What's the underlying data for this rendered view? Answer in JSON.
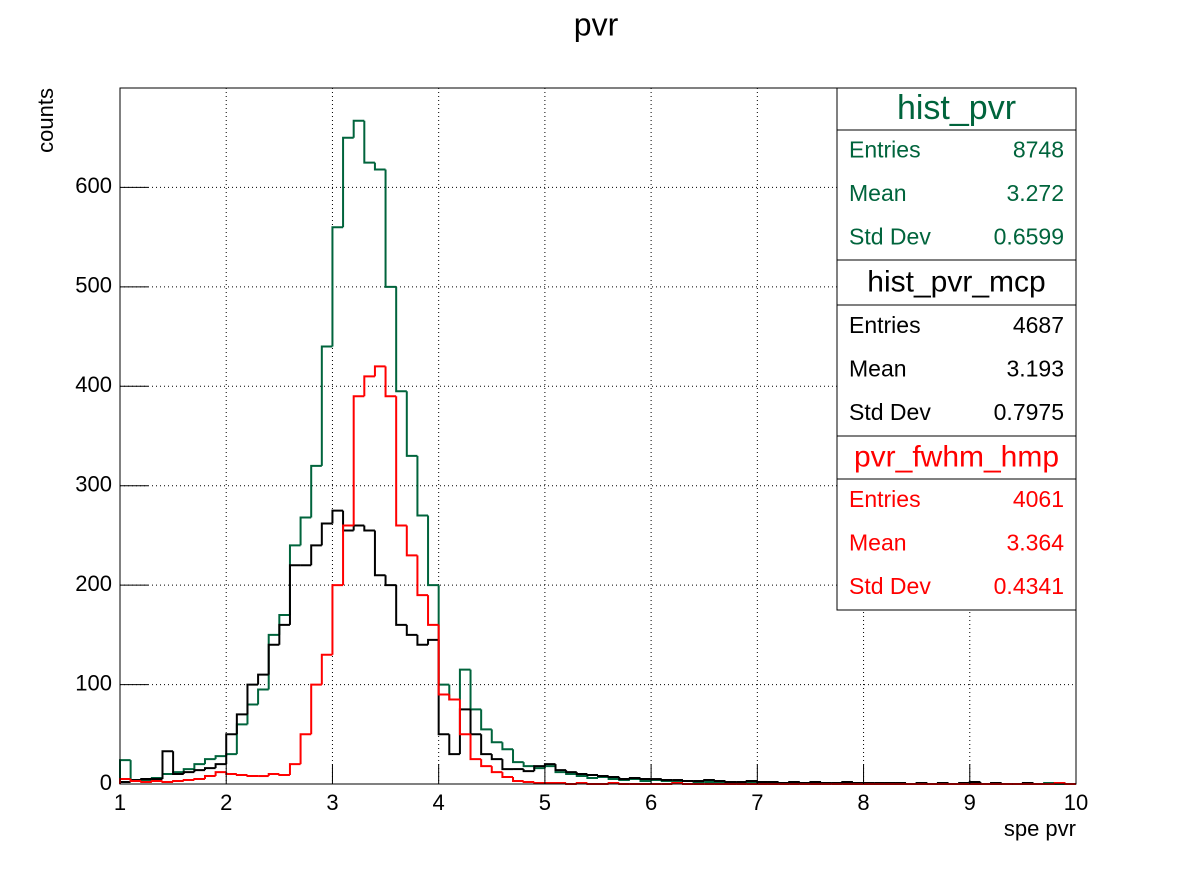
{
  "chart_data": {
    "type": "histogram",
    "title": "pvr",
    "x_label": "spe pvr",
    "y_label": "counts",
    "bins": [
      1,
      1.1,
      1.2,
      1.3,
      1.4,
      1.5,
      1.6,
      1.7,
      1.8,
      1.9,
      2,
      2.1,
      2.2,
      2.3,
      2.4,
      2.5,
      2.6,
      2.7,
      2.8,
      2.9,
      3,
      3.1,
      3.2,
      3.3,
      3.4,
      3.5,
      3.6,
      3.7,
      3.8,
      3.9,
      4,
      4.1,
      4.2,
      4.3,
      4.4,
      4.5,
      4.6,
      4.7,
      4.8,
      4.9,
      5,
      5.1,
      5.2,
      5.3,
      5.4,
      5.5,
      5.6,
      5.7,
      5.8,
      5.9,
      6,
      6.1,
      6.2,
      6.3,
      6.4,
      6.5,
      6.6,
      6.7,
      6.8,
      6.9,
      7,
      7.1,
      7.2,
      7.3,
      7.4,
      7.5,
      7.6,
      7.7,
      7.8,
      7.9,
      8,
      8.1,
      8.2,
      8.3,
      8.4,
      8.5,
      8.6,
      8.7,
      8.8,
      8.9,
      9,
      9.1,
      9.2,
      9.3,
      9.4,
      9.5,
      9.6,
      9.7,
      9.8,
      9.9,
      10
    ],
    "xlim": [
      1,
      10
    ],
    "ylim": [
      0,
      700
    ],
    "xticks": [
      1,
      2,
      3,
      4,
      5,
      6,
      7,
      8,
      9,
      10
    ],
    "yticks": [
      0,
      100,
      200,
      300,
      400,
      500,
      600
    ],
    "grid": true,
    "stats_labels": [
      "Entries",
      "Mean",
      "Std Dev"
    ],
    "series": [
      {
        "name": "hist_pvr",
        "color": "#00643c",
        "entries": 8748,
        "mean": 3.272,
        "std_dev": 0.6599,
        "values": [
          24,
          3,
          4,
          6,
          10,
          12,
          15,
          20,
          25,
          28,
          30,
          60,
          80,
          95,
          150,
          170,
          240,
          268,
          320,
          440,
          560,
          650,
          667,
          625,
          618,
          500,
          395,
          330,
          270,
          200,
          100,
          85,
          115,
          75,
          55,
          42,
          35,
          22,
          18,
          16,
          18,
          12,
          10,
          8,
          6,
          7,
          5,
          4,
          5,
          3,
          4,
          3,
          2,
          3,
          2,
          2,
          1,
          2,
          1,
          1,
          2,
          1,
          1,
          1,
          1,
          1,
          1,
          1,
          1,
          0,
          1,
          0,
          1,
          0,
          0,
          1,
          0,
          0,
          0,
          0,
          1,
          0,
          0,
          0,
          0,
          0,
          0,
          1,
          0,
          0
        ]
      },
      {
        "name": "hist_pvr_mcp",
        "color": "#000000",
        "entries": 4687,
        "mean": 3.193,
        "std_dev": 0.7975,
        "values": [
          2,
          4,
          5,
          5,
          33,
          10,
          12,
          14,
          16,
          20,
          50,
          70,
          100,
          110,
          140,
          160,
          220,
          220,
          240,
          262,
          275,
          255,
          260,
          255,
          210,
          200,
          160,
          150,
          140,
          145,
          50,
          30,
          75,
          50,
          30,
          25,
          15,
          15,
          13,
          18,
          20,
          14,
          12,
          10,
          9,
          8,
          7,
          5,
          6,
          5,
          5,
          4,
          4,
          3,
          3,
          4,
          3,
          2,
          2,
          3,
          2,
          2,
          1,
          2,
          1,
          2,
          1,
          1,
          2,
          1,
          1,
          1,
          1,
          1,
          0,
          1,
          0,
          1,
          0,
          1,
          2,
          0,
          1,
          0,
          0,
          1,
          0,
          0,
          1,
          0
        ]
      },
      {
        "name": "pvr_fwhm_hmp",
        "color": "#ff0000",
        "entries": 4061,
        "mean": 3.364,
        "std_dev": 0.4341,
        "values": [
          5,
          3,
          2,
          3,
          2,
          3,
          4,
          5,
          8,
          12,
          10,
          9,
          8,
          8,
          10,
          9,
          20,
          50,
          100,
          130,
          200,
          260,
          390,
          410,
          420,
          390,
          260,
          230,
          190,
          160,
          90,
          85,
          50,
          25,
          18,
          12,
          7,
          3,
          2,
          1,
          1,
          1,
          0,
          1,
          0,
          0,
          1,
          0,
          0,
          0,
          0,
          0,
          1,
          0,
          0,
          0,
          0,
          0,
          0,
          0,
          0,
          0,
          0,
          0,
          0,
          0,
          0,
          0,
          0,
          0,
          0,
          0,
          0,
          0,
          0,
          0,
          0,
          0,
          0,
          0,
          0,
          0,
          0,
          0,
          0,
          0,
          0,
          0,
          1,
          0
        ]
      }
    ]
  }
}
